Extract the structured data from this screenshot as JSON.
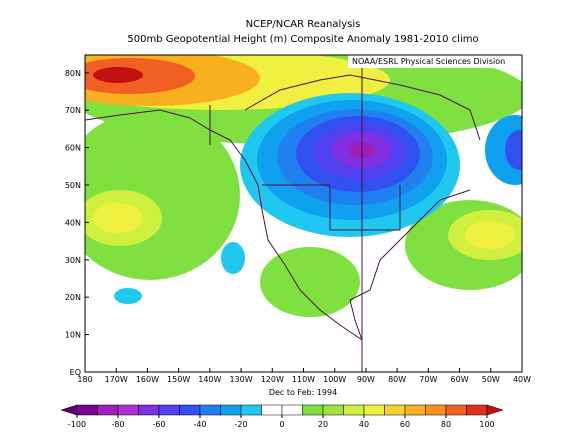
{
  "header": {
    "title": "NCEP/NCAR Reanalysis",
    "subtitle": "500mb Geopotential Height (m) Composite Anomaly 1981-2010 climo",
    "source": "NOAA/ESRL Physical Sciences Division"
  },
  "map": {
    "lat_labels": [
      "EQ",
      "10N",
      "20N",
      "30N",
      "40N",
      "50N",
      "60N",
      "70N",
      "80N"
    ],
    "lon_labels": [
      "180",
      "170W",
      "160W",
      "150W",
      "140W",
      "130W",
      "120W",
      "110W",
      "100W",
      "90W",
      "80W",
      "70W",
      "60W",
      "50W",
      "40W"
    ],
    "period": "Dec to Feb: 1994"
  },
  "colorbar": {
    "ticks": [
      -100,
      -80,
      -60,
      -40,
      -20,
      0,
      20,
      40,
      60,
      80,
      100
    ],
    "colors": [
      "#5a0070",
      "#7a0090",
      "#9a20b8",
      "#b030d0",
      "#8030e0",
      "#5040f0",
      "#3050f0",
      "#2080f0",
      "#10a0f0",
      "#20c8f0",
      "#ffffff",
      "#ffffff",
      "#80e040",
      "#a0e040",
      "#d0f040",
      "#f0f040",
      "#f8d030",
      "#f8b020",
      "#f89020",
      "#f06020",
      "#e03020",
      "#c01010"
    ]
  }
}
